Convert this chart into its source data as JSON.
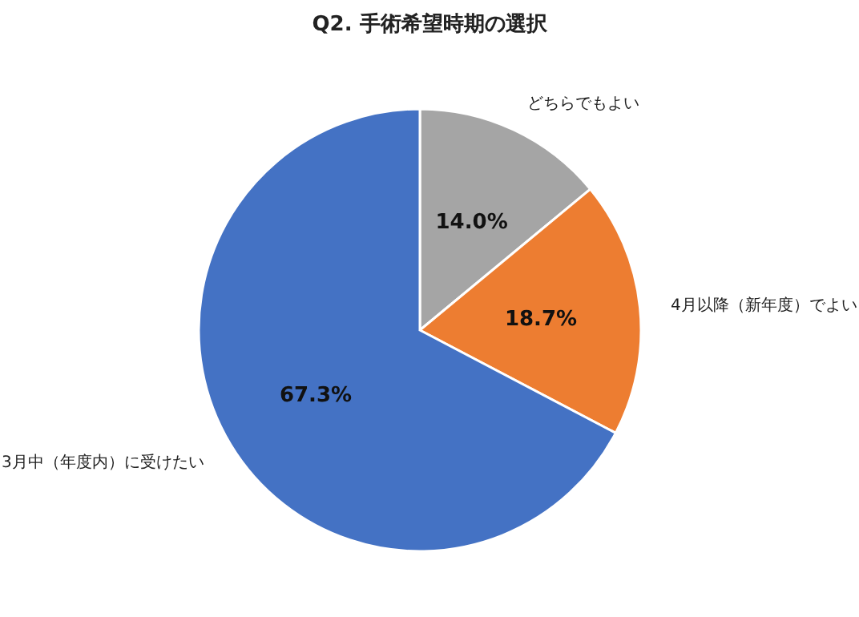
{
  "chart_data": {
    "type": "pie",
    "title": "Q2. 手術希望時期の選択",
    "categories": [
      "どちらでもよい",
      "4月以降（新年度）でよい",
      "3月中（年度内）に受けたい"
    ],
    "values": [
      14.0,
      18.7,
      67.3
    ],
    "colors": [
      "#a5a5a5",
      "#ed7d31",
      "#4472c4"
    ],
    "value_labels": [
      "14.0%",
      "18.7%",
      "67.3%"
    ]
  }
}
